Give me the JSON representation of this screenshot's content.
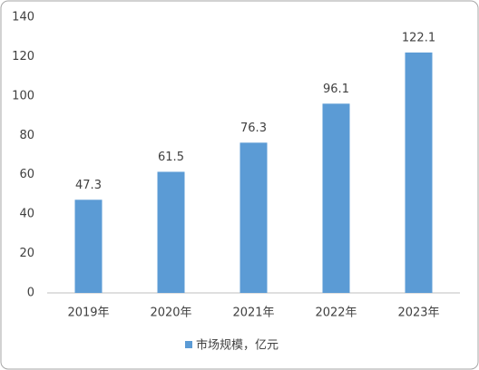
{
  "chart_data": {
    "type": "bar",
    "categories": [
      "2019年",
      "2020年",
      "2021年",
      "2022年",
      "2023年"
    ],
    "series": [
      {
        "name": "市场规模，亿元",
        "color": "#5b9bd5",
        "values": [
          47.3,
          61.5,
          76.3,
          96.1,
          122.1
        ]
      }
    ],
    "ylim": [
      0,
      140
    ],
    "yticks": [
      0,
      20,
      40,
      60,
      80,
      100,
      120,
      140
    ],
    "grid": false,
    "legend": "bottom"
  }
}
